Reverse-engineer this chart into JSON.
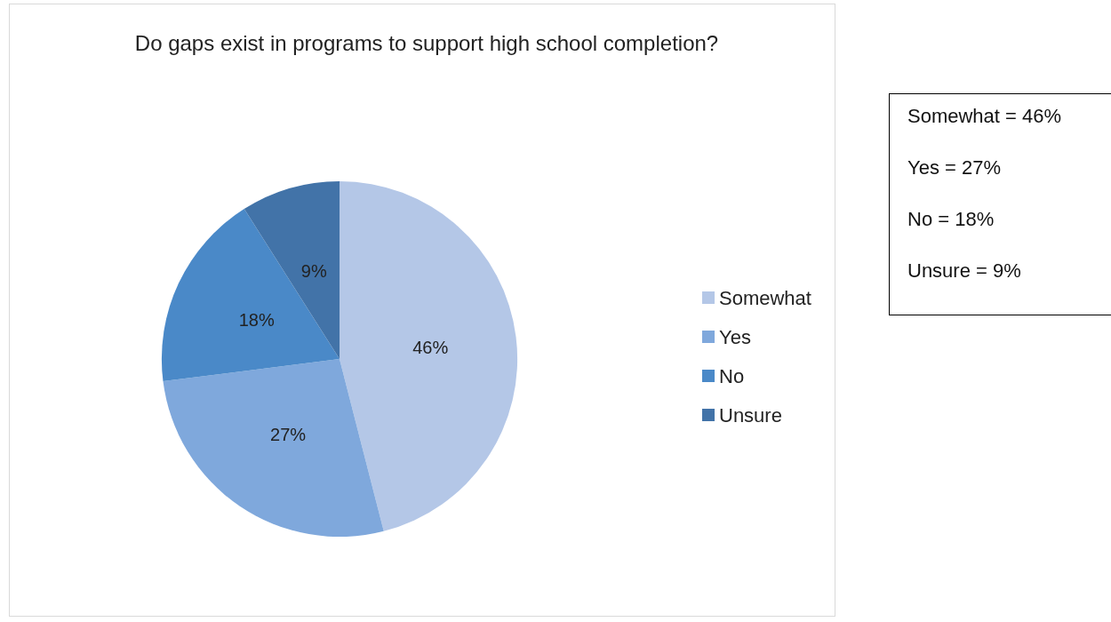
{
  "chart_data": {
    "type": "pie",
    "title": "Do gaps exist in programs to support high school completion?",
    "categories": [
      "Somewhat",
      "Yes",
      "No",
      "Unsure"
    ],
    "values": [
      46,
      27,
      18,
      9
    ],
    "value_labels": [
      "46%",
      "27%",
      "18%",
      "9%"
    ],
    "colors": [
      "#b4c7e7",
      "#7fa8dc",
      "#4a89c8",
      "#4273a8"
    ],
    "legend": "right",
    "annotations": [
      "Somewhat = 46%",
      "Yes = 27%",
      "No = 18%",
      "Unsure = 9%"
    ]
  }
}
